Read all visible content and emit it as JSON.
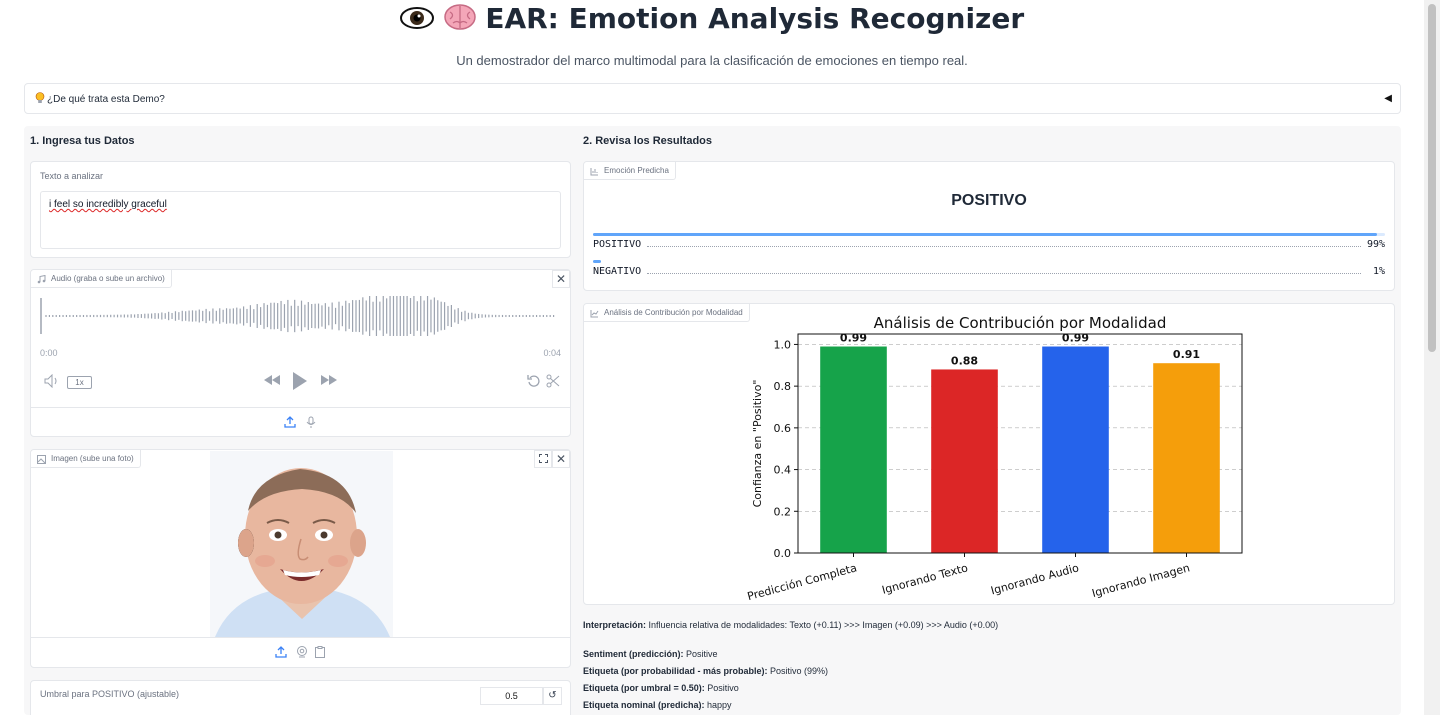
{
  "header": {
    "title": "EAR: Emotion Analysis Recognizer",
    "subtitle": "Un demostrador del marco multimodal para la clasificación de emociones en tiempo real."
  },
  "accordion": {
    "label": "¿De qué trata esta Demo?"
  },
  "left": {
    "title": "1. Ingresa tus Datos",
    "text_label": "Texto a analizar",
    "text_value": "i feel so incredibly graceful",
    "audio_label": "Audio (graba o sube un archivo)",
    "audio_start": "0:00",
    "audio_end": "0:04",
    "speed": "1x",
    "image_label": "Imagen (sube una foto)",
    "threshold_label": "Umbral para POSITIVO (ajustable)",
    "threshold_value": "0.5"
  },
  "right": {
    "title": "2. Revisa los Resultados",
    "emotion_tag": "Emoción Predicha",
    "predicted": "POSITIVO",
    "probs": [
      {
        "label": "POSITIVO",
        "pct_text": "99%",
        "value": 0.99
      },
      {
        "label": "NEGATIVO",
        "pct_text": "1%",
        "value": 0.01
      }
    ],
    "chart_tag": "Análisis de Contribución por Modalidad",
    "interpretation_label": "Interpretación:",
    "interpretation_text": " Influencia relativa de modalidades: Texto (+0.11) >>> Imagen (+0.09) >>> Audio (+0.00)",
    "details": [
      {
        "k": "Sentiment (predicción):",
        "v": " Positive"
      },
      {
        "k": "Etiqueta (por probabilidad - más probable):",
        "v": " Positivo (99%)"
      },
      {
        "k": "Etiqueta (por umbral = 0.50):",
        "v": " Positivo"
      },
      {
        "k": "Etiqueta nominal (predicha):",
        "v": " happy"
      }
    ]
  },
  "colors": {
    "green": "#16a34a",
    "red": "#dc2626",
    "blue": "#2563eb",
    "orange": "#f59e0b"
  },
  "chart_data": {
    "type": "bar",
    "title": "Análisis de Contribución por Modalidad",
    "ylabel": "Confianza en \"Positivo\"",
    "xlabel": "",
    "categories": [
      "Predicción Completa",
      "Ignorando Texto",
      "Ignorando Audio",
      "Ignorando Imagen"
    ],
    "values": [
      0.99,
      0.88,
      0.99,
      0.91
    ],
    "value_labels": [
      "0.99",
      "0.88",
      "0.99",
      "0.91"
    ],
    "bar_colors": [
      "#16a34a",
      "#dc2626",
      "#2563eb",
      "#f59e0b"
    ],
    "ylim": [
      0,
      1.05
    ],
    "yticks": [
      "0.0",
      "0.2",
      "0.4",
      "0.6",
      "0.8",
      "1.0"
    ],
    "grid": "horizontal-dashed"
  }
}
